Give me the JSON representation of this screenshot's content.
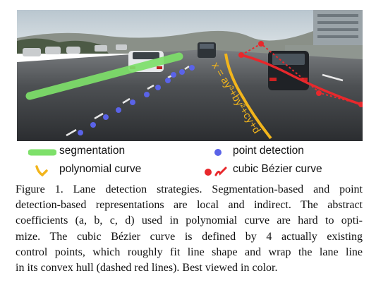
{
  "figure": {
    "equation": "x = ay³+by²+cy+d"
  },
  "legend": {
    "segmentation": "segmentation",
    "point_detection": "point detection",
    "polynomial_curve": "polynomial curve",
    "bezier_curve": "cubic Bézier curve"
  },
  "caption": {
    "line1": "Figure 1. Lane detection strategies. Segmentation-based and point",
    "line2": "detection-based representations are local and indirect. The abstract",
    "line3": "coefficients (a, b, c, d) used in polynomial curve are hard to opti-",
    "line4": "mize.  The cubic Bézier curve is defined by 4 actually existing",
    "line5": "control points, which roughly fit line shape and wrap the lane line",
    "line6": "in its convex hull (dashed red lines). Best viewed in color."
  },
  "colors": {
    "segmentation": "#7ee06a",
    "point": "#5a63e8",
    "polynomial": "#f2b51c",
    "bezier": "#e8282c"
  }
}
